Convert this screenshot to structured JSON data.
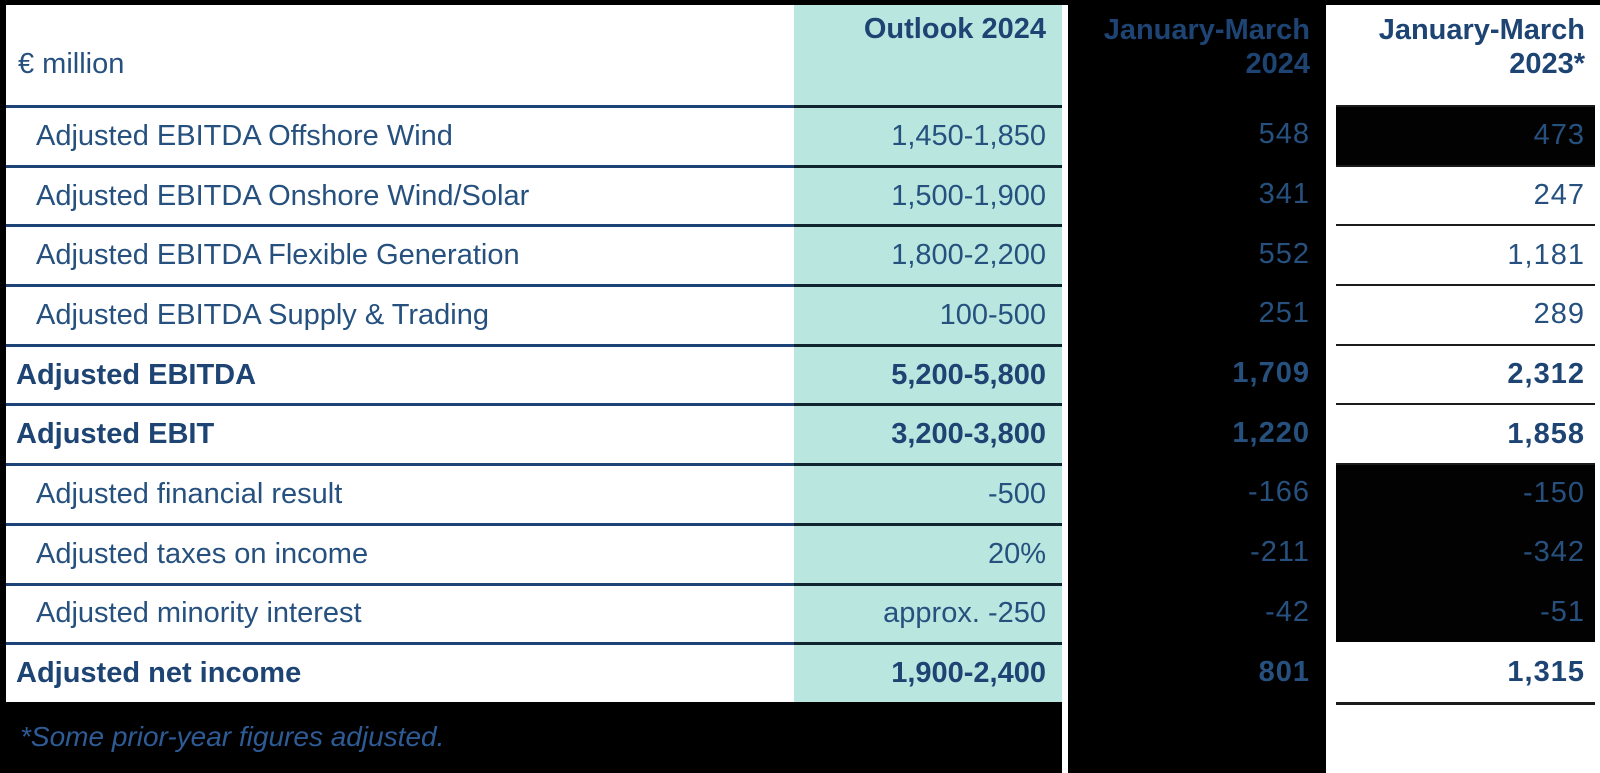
{
  "table": {
    "unit_label": "€ million",
    "columns": {
      "outlook": "Outlook 2024",
      "jan_mar_2024": "January-March\n2024",
      "jan_mar_2023": "January-March\n2023*"
    },
    "rows": [
      {
        "label": "Adjusted EBITDA Offshore Wind",
        "outlook": "1,450-1,850",
        "jan_mar_2024": "548",
        "jan_mar_2023": "473"
      },
      {
        "label": "Adjusted EBITDA Onshore Wind/Solar",
        "outlook": "1,500-1,900",
        "jan_mar_2024": "341",
        "jan_mar_2023": "247"
      },
      {
        "label": "Adjusted EBITDA Flexible Generation",
        "outlook": "1,800-2,200",
        "jan_mar_2024": "552",
        "jan_mar_2023": "1,181"
      },
      {
        "label": "Adjusted EBITDA Supply & Trading",
        "outlook": "100-500",
        "jan_mar_2024": "251",
        "jan_mar_2023": "289"
      },
      {
        "label": "Adjusted EBITDA",
        "outlook": "5,200-5,800",
        "jan_mar_2024": "1,709",
        "jan_mar_2023": "2,312"
      },
      {
        "label": "Adjusted EBIT",
        "outlook": "3,200-3,800",
        "jan_mar_2024": "1,220",
        "jan_mar_2023": "1,858"
      },
      {
        "label": "Adjusted financial result",
        "outlook": "-500",
        "jan_mar_2024": "-166",
        "jan_mar_2023": "-150"
      },
      {
        "label": "Adjusted taxes on income",
        "outlook": "20%",
        "jan_mar_2024": "-211",
        "jan_mar_2023": "-342"
      },
      {
        "label": "Adjusted minority interest",
        "outlook": "approx. -250",
        "jan_mar_2024": "-42",
        "jan_mar_2023": "-51"
      },
      {
        "label": "Adjusted net income",
        "outlook": "1,900-2,400",
        "jan_mar_2024": "801",
        "jan_mar_2023": "1,315"
      }
    ],
    "footnote": "*Some prior-year figures adjusted."
  },
  "colors": {
    "mint_highlight": "#b9e7df",
    "navy_text": "#26517f",
    "navy_bold_text": "#1d4473",
    "navy_rule": "#1e4377",
    "black_panel": "#000000"
  }
}
